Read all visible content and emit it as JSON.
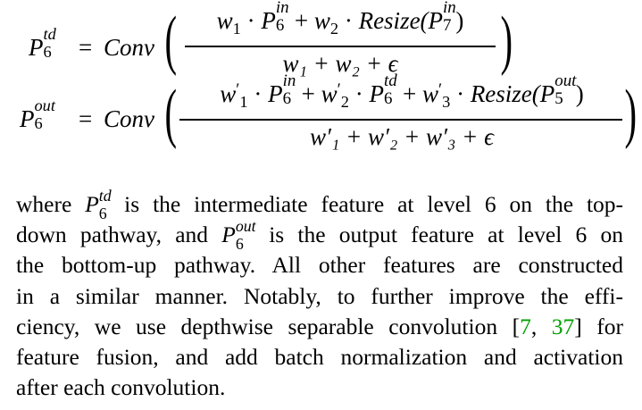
{
  "equations": [
    {
      "id": "eq-p6-td",
      "lhs": {
        "symbol": "P",
        "subscript": "6",
        "superscript": "td"
      },
      "op": "=",
      "func": "Conv",
      "numerator": {
        "t1_w": "w",
        "t1_w_sub": "1",
        "dot1": "·",
        "t1_P": "P",
        "t1_P_sup": "in",
        "t1_P_sub": "6",
        "plus1": "+",
        "t2_w": "w",
        "t2_w_sub": "2",
        "dot2": "·",
        "t2_resize": "Resize(",
        "t2_P": "P",
        "t2_P_sup": "in",
        "t2_P_sub": "7",
        "close": ")"
      },
      "denominator": "w₁ + w₂ + ϵ"
    },
    {
      "id": "eq-p6-out",
      "lhs": {
        "symbol": "P",
        "subscript": "6",
        "superscript": "out"
      },
      "op": "=",
      "func": "Conv",
      "numerator": {
        "t1_w": "w",
        "t1_w_prime": "′",
        "t1_w_sub": "1",
        "dot1": "·",
        "t1_P": "P",
        "t1_P_sup": "in",
        "t1_P_sub": "6",
        "plus1": "+",
        "t2_w": "w",
        "t2_w_prime": "′",
        "t2_w_sub": "2",
        "dot2": "·",
        "t2_P": "P",
        "t2_P_sup": "td",
        "t2_P_sub": "6",
        "plus2": "+",
        "t3_w": "w",
        "t3_w_prime": "′",
        "t3_w_sub": "3",
        "dot3": "·",
        "t3_resize": "Resize(",
        "t3_P": "P",
        "t3_P_sup": "out",
        "t3_P_sub": "5",
        "close": ")"
      },
      "denominator": "w′₁ + w′₂ + w′₃ + ϵ"
    }
  ],
  "paragraph": {
    "l1_a": "where",
    "l1_sym": "P",
    "l1_sup": "td",
    "l1_sub": "6",
    "l1_b": "is the intermediate feature at level 6 on the top-",
    "l2_a": "down pathway, and",
    "l2_sym": "P",
    "l2_sup": "out",
    "l2_sub": "6",
    "l2_b": "is the output feature at level 6 on",
    "l3": "the bottom-up pathway.  All other features are constructed",
    "l4": "in a similar manner.  Notably, to further improve the effi-",
    "l5_a": "ciency, we use depthwise separable convolution [",
    "l5_cite1": "7",
    "l5_comma": ", ",
    "l5_cite2": "37",
    "l5_b": "] for",
    "l6": "feature fusion, and add batch normalization and activation",
    "l7": "after each convolution."
  }
}
